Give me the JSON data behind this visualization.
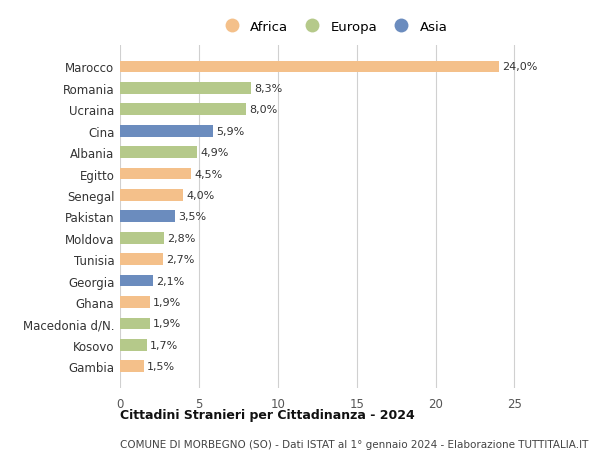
{
  "categories": [
    "Marocco",
    "Romania",
    "Ucraina",
    "Cina",
    "Albania",
    "Egitto",
    "Senegal",
    "Pakistan",
    "Moldova",
    "Tunisia",
    "Georgia",
    "Ghana",
    "Macedonia d/N.",
    "Kosovo",
    "Gambia"
  ],
  "values": [
    24.0,
    8.3,
    8.0,
    5.9,
    4.9,
    4.5,
    4.0,
    3.5,
    2.8,
    2.7,
    2.1,
    1.9,
    1.9,
    1.7,
    1.5
  ],
  "labels": [
    "24,0%",
    "8,3%",
    "8,0%",
    "5,9%",
    "4,9%",
    "4,5%",
    "4,0%",
    "3,5%",
    "2,8%",
    "2,7%",
    "2,1%",
    "1,9%",
    "1,9%",
    "1,7%",
    "1,5%"
  ],
  "continents": [
    "Africa",
    "Europa",
    "Europa",
    "Asia",
    "Europa",
    "Africa",
    "Africa",
    "Asia",
    "Europa",
    "Africa",
    "Asia",
    "Africa",
    "Europa",
    "Europa",
    "Africa"
  ],
  "colors": {
    "Africa": "#F4C08A",
    "Europa": "#B5C98A",
    "Asia": "#6B8CBE"
  },
  "legend_order": [
    "Africa",
    "Europa",
    "Asia"
  ],
  "title1": "Cittadini Stranieri per Cittadinanza - 2024",
  "title2": "COMUNE DI MORBEGNO (SO) - Dati ISTAT al 1° gennaio 2024 - Elaborazione TUTTITALIA.IT",
  "xlim": [
    0,
    27
  ],
  "xticks": [
    0,
    5,
    10,
    15,
    20,
    25
  ],
  "background_color": "#ffffff",
  "grid_color": "#d0d0d0",
  "bar_height": 0.55,
  "label_fontsize": 8.0,
  "ytick_fontsize": 8.5,
  "xtick_fontsize": 8.5,
  "legend_fontsize": 9.5,
  "title1_fontsize": 9.0,
  "title2_fontsize": 7.5
}
